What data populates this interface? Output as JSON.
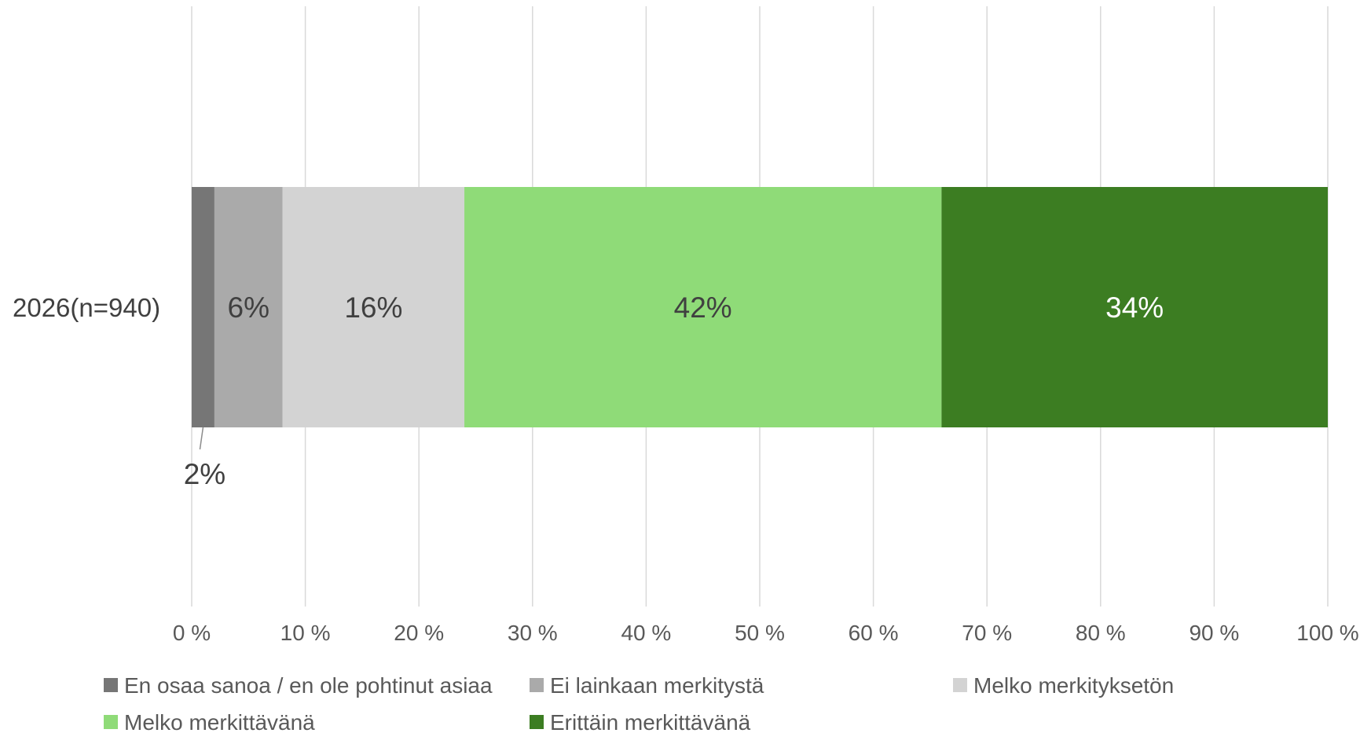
{
  "chart_data": {
    "type": "bar",
    "orientation": "horizontal",
    "stacked": true,
    "percent_stacked": true,
    "categories": [
      "2026(n=940)"
    ],
    "series": [
      {
        "name": "En osaa sanoa / en ole pohtinut asiaa",
        "values": [
          2
        ],
        "color": "#767676",
        "label": "2%",
        "label_color": "#404040",
        "label_position": "outside-below"
      },
      {
        "name": "Ei lainkaan merkitystä",
        "values": [
          6
        ],
        "color": "#aaaaaa",
        "label": "6%",
        "label_color": "#404040"
      },
      {
        "name": "Melko merkityksetön",
        "values": [
          16
        ],
        "color": "#d3d3d3",
        "label": "16%",
        "label_color": "#404040"
      },
      {
        "name": "Melko merkittävänä",
        "values": [
          42
        ],
        "color": "#8fdb78",
        "label": "42%",
        "label_color": "#404040"
      },
      {
        "name": "Erittäin merkittävänä",
        "values": [
          34
        ],
        "color": "#3c7d22",
        "label": "34%",
        "label_color": "#ffffff"
      }
    ],
    "xlim": [
      0,
      100
    ],
    "x_ticks": [
      "0 %",
      "10 %",
      "20 %",
      "30 %",
      "40 %",
      "50 %",
      "60 %",
      "70 %",
      "80 %",
      "90 %",
      "100 %"
    ],
    "grid": "vertical",
    "legend": "bottom",
    "title": "",
    "xlabel": "",
    "ylabel": ""
  }
}
